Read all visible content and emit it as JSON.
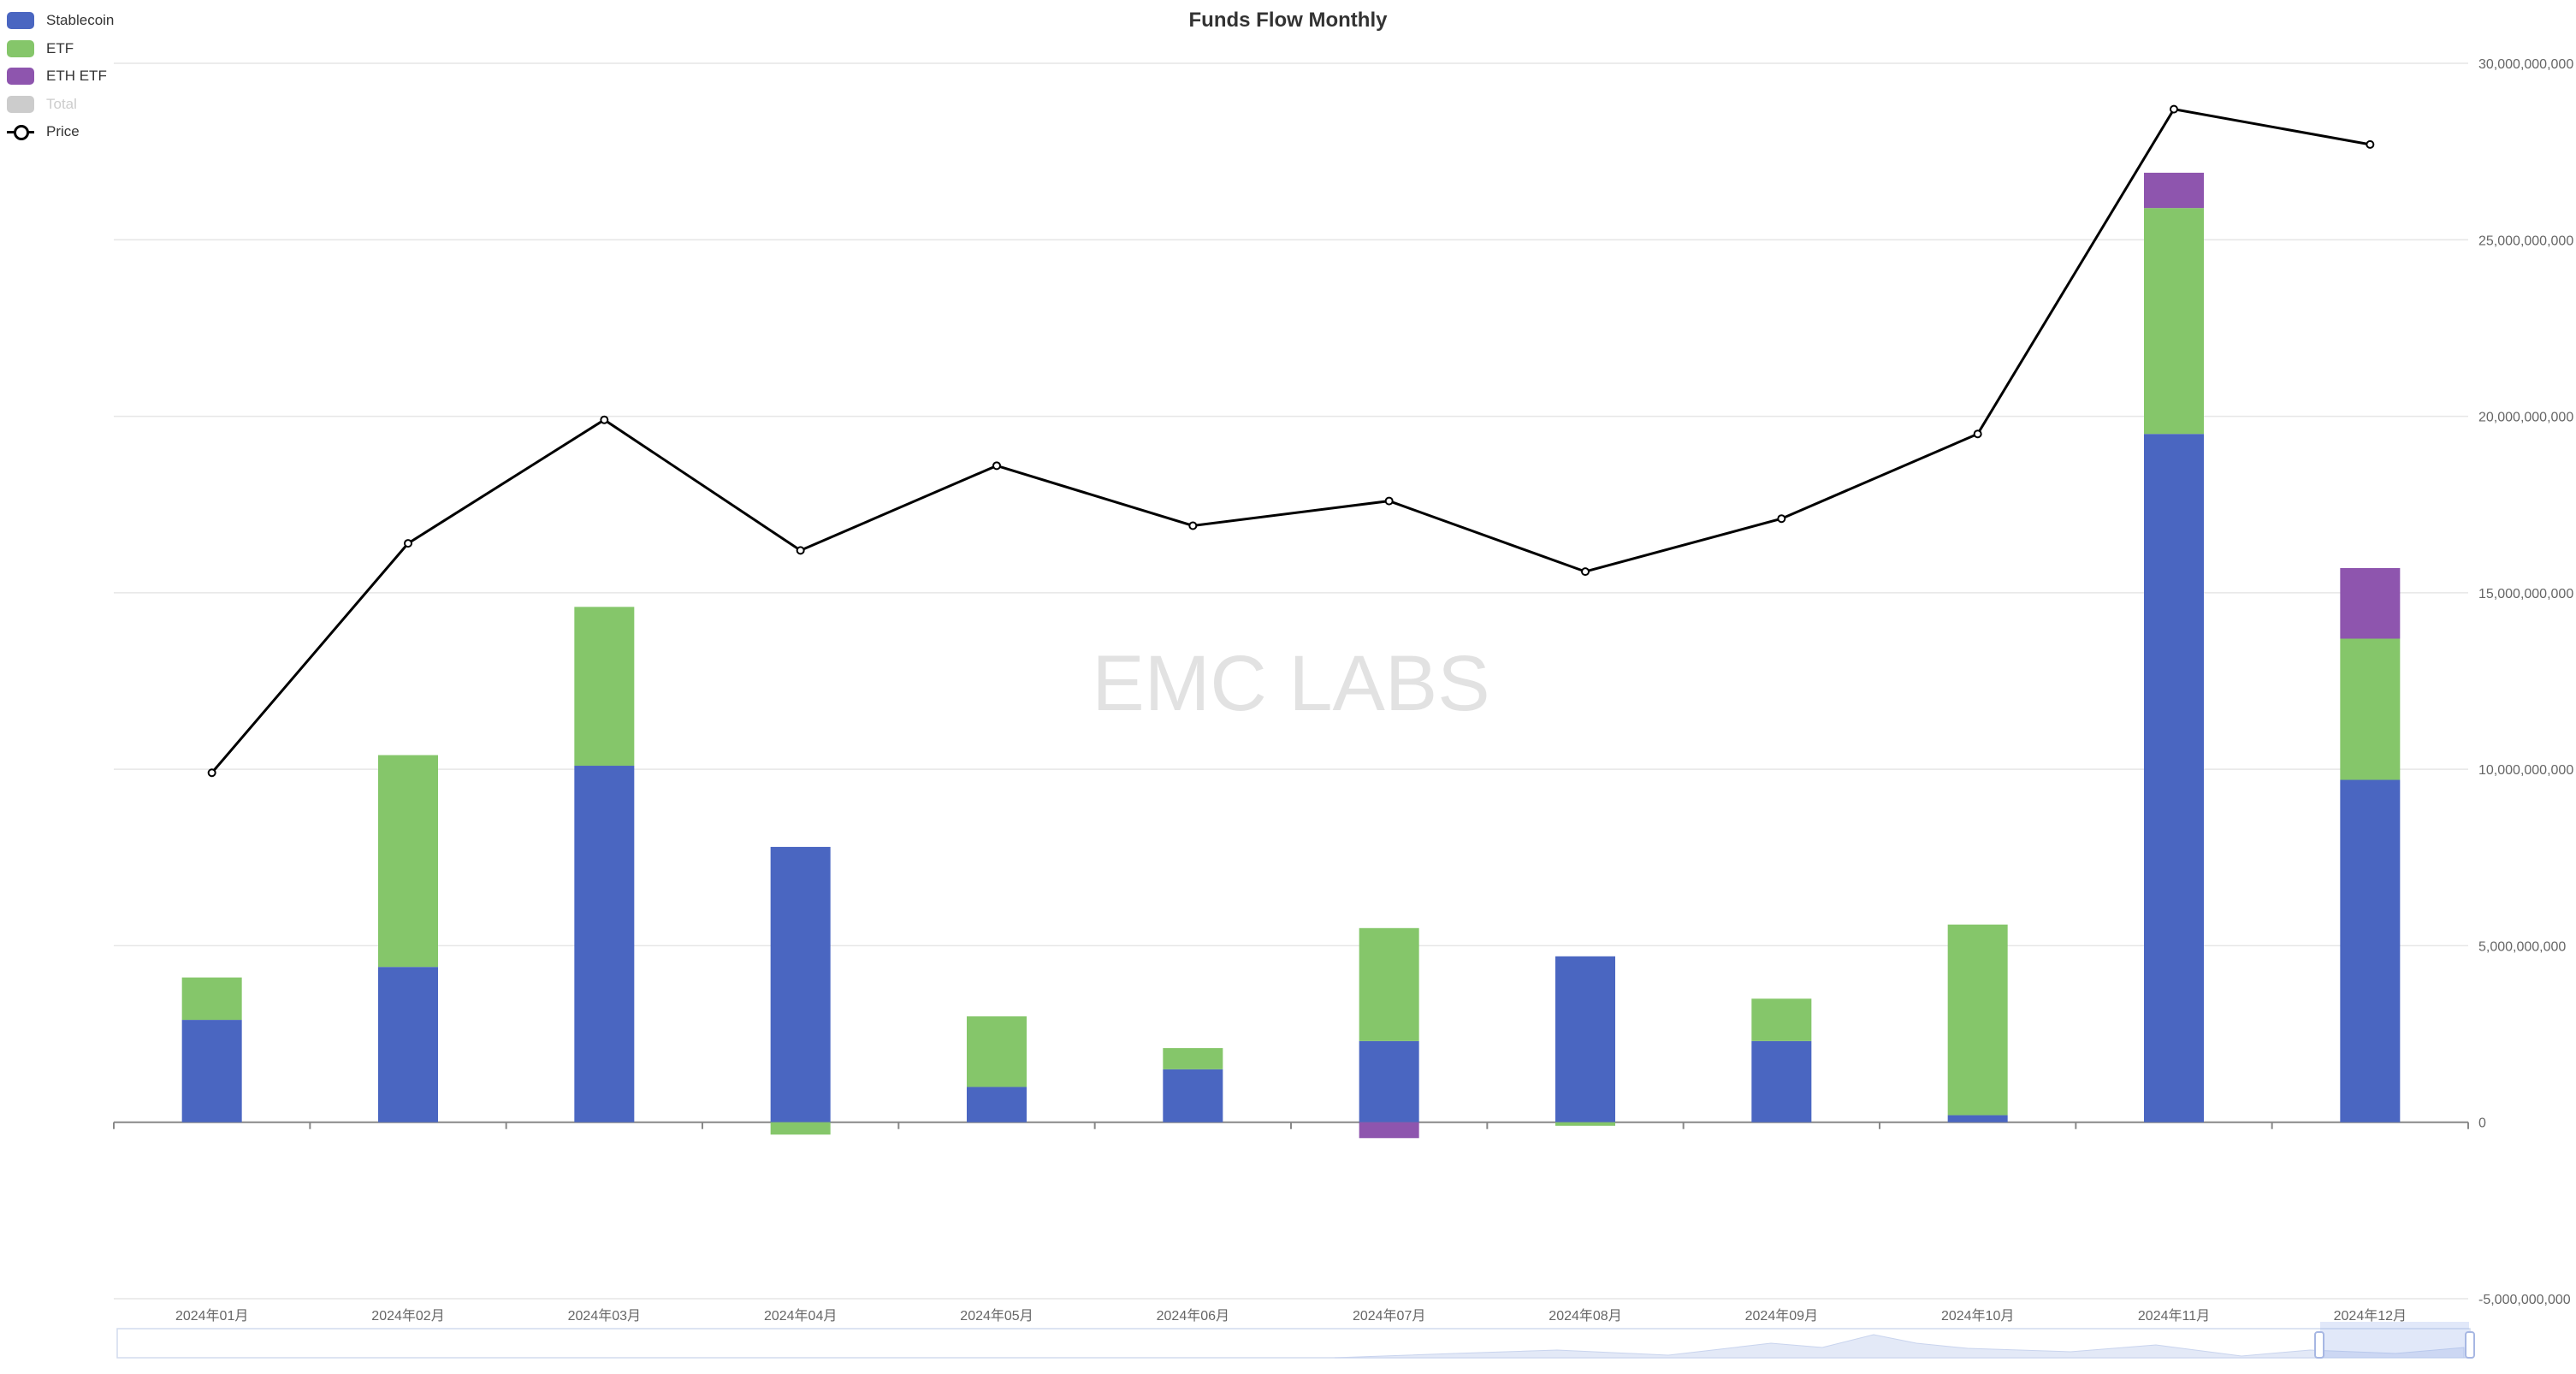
{
  "title": "Funds Flow Monthly",
  "watermark": "EMC LABS",
  "legend": [
    {
      "name": "Stablecoin",
      "color": "#4a66c1",
      "type": "bar",
      "enabled": true
    },
    {
      "name": "ETF",
      "color": "#85c66a",
      "type": "bar",
      "enabled": true
    },
    {
      "name": "ETH ETF",
      "color": "#8e55ae",
      "type": "bar",
      "enabled": true
    },
    {
      "name": "Total",
      "color": "#cccccc",
      "type": "bar",
      "enabled": false
    },
    {
      "name": "Price",
      "color": "#000000",
      "type": "line",
      "enabled": true
    }
  ],
  "chart_data": {
    "type": "bar",
    "stacked": true,
    "title": "Funds Flow Monthly",
    "categories": [
      "2024年01月",
      "2024年02月",
      "2024年03月",
      "2024年04月",
      "2024年05月",
      "2024年06月",
      "2024年07月",
      "2024年08月",
      "2024年09月",
      "2024年10月",
      "2024年11月",
      "2024年12月"
    ],
    "series": [
      {
        "name": "Stablecoin",
        "type": "bar",
        "color": "#4a66c1",
        "values": [
          2900000000,
          4400000000,
          10100000000,
          7800000000,
          1000000000,
          1500000000,
          2300000000,
          4700000000,
          2300000000,
          200000000,
          19500000000,
          9700000000
        ]
      },
      {
        "name": "ETF",
        "type": "bar",
        "color": "#85c66a",
        "values": [
          1200000000,
          6000000000,
          4500000000,
          -350000000,
          2000000000,
          600000000,
          3200000000,
          -100000000,
          1200000000,
          5400000000,
          6400000000,
          4000000000
        ]
      },
      {
        "name": "ETH ETF",
        "type": "bar",
        "color": "#8e55ae",
        "values": [
          0,
          0,
          0,
          0,
          0,
          0,
          -450000000,
          0,
          0,
          0,
          1000000000,
          2000000000
        ]
      },
      {
        "name": "Price",
        "type": "line",
        "color": "#000000",
        "values": [
          9900000000,
          16400000000,
          19900000000,
          16200000000,
          18600000000,
          16900000000,
          17600000000,
          15600000000,
          17100000000,
          19500000000,
          28700000000,
          27700000000
        ]
      }
    ],
    "ylim": [
      -5000000000,
      30000000000
    ],
    "yticks": [
      "-5,000,000,000",
      "0",
      "5,000,000,000",
      "10,000,000,000",
      "15,000,000,000",
      "20,000,000,000",
      "25,000,000,000",
      "30,000,000,000"
    ],
    "grid": true,
    "legend_position": "top-left",
    "y_axis_position": "right"
  }
}
